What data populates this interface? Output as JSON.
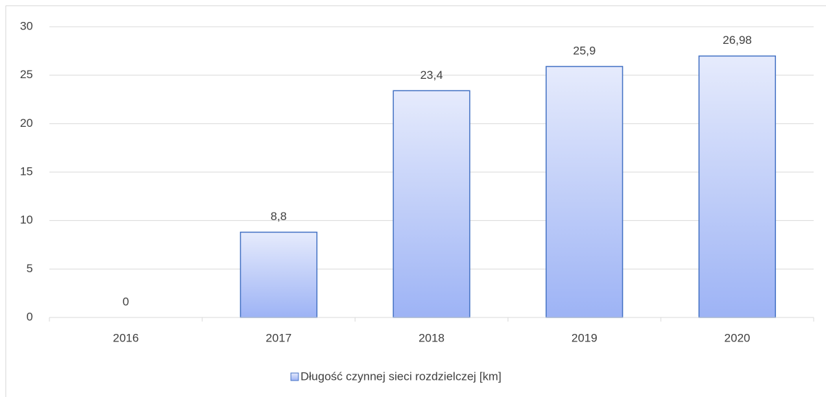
{
  "chart_data": {
    "type": "bar",
    "categories": [
      "2016",
      "2017",
      "2018",
      "2019",
      "2020"
    ],
    "series": [
      {
        "name": "Długość czynnej sieci rozdzielczej [km]",
        "color": "#4472c4",
        "values": [
          0,
          8.8,
          23.4,
          25.9,
          26.98
        ],
        "value_labels": [
          "0",
          "8,8",
          "23,4",
          "25,9",
          "26,98"
        ]
      }
    ],
    "ylim": [
      0,
      30
    ],
    "yticks": [
      0,
      5,
      10,
      15,
      20,
      25,
      30
    ],
    "grid": true,
    "legend": "bottom"
  }
}
